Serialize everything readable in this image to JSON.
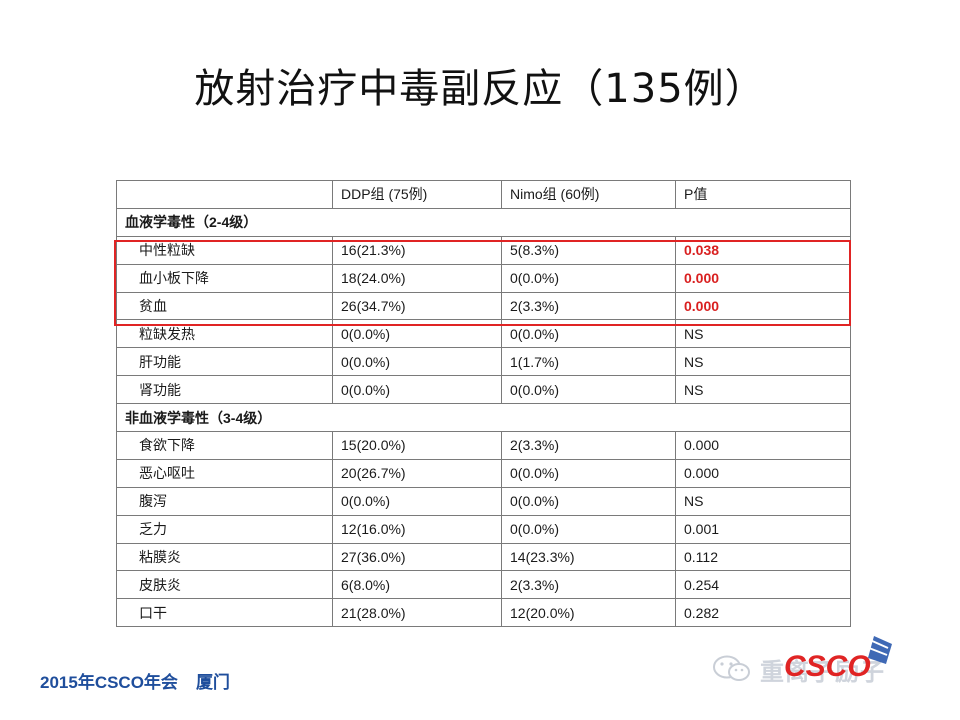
{
  "title": "放射治疗中毒副反应（135例）",
  "table": {
    "header": [
      "",
      "DDP组 (75例)",
      "Nimo组 (60例)",
      "P值"
    ],
    "sections": [
      {
        "label": "血液学毒性（2-4级）",
        "rows": [
          {
            "name": "中性粒缺",
            "ddp": "16(21.3%)",
            "nimo": "5(8.3%)",
            "p": "0.038",
            "highlight": true
          },
          {
            "name": "血小板下降",
            "ddp": "18(24.0%)",
            "nimo": "0(0.0%)",
            "p": "0.000",
            "highlight": true
          },
          {
            "name": "贫血",
            "ddp": "26(34.7%)",
            "nimo": "2(3.3%)",
            "p": "0.000",
            "highlight": true
          },
          {
            "name": "粒缺发热",
            "ddp": "0(0.0%)",
            "nimo": "0(0.0%)",
            "p": "NS",
            "highlight": false
          },
          {
            "name": "肝功能",
            "ddp": "0(0.0%)",
            "nimo": "1(1.7%)",
            "p": "NS",
            "highlight": false
          },
          {
            "name": "肾功能",
            "ddp": "0(0.0%)",
            "nimo": "0(0.0%)",
            "p": "NS",
            "highlight": false
          }
        ]
      },
      {
        "label": "非血液学毒性（3-4级）",
        "rows": [
          {
            "name": "食欲下降",
            "ddp": "15(20.0%)",
            "nimo": "2(3.3%)",
            "p": "0.000",
            "highlight": false
          },
          {
            "name": "恶心呕吐",
            "ddp": "20(26.7%)",
            "nimo": "0(0.0%)",
            "p": "0.000",
            "highlight": false
          },
          {
            "name": "腹泻",
            "ddp": "0(0.0%)",
            "nimo": "0(0.0%)",
            "p": "NS",
            "highlight": false
          },
          {
            "name": "乏力",
            "ddp": "12(16.0%)",
            "nimo": "0(0.0%)",
            "p": "0.001",
            "highlight": false
          },
          {
            "name": "粘膜炎",
            "ddp": "27(36.0%)",
            "nimo": "14(23.3%)",
            "p": "0.112",
            "highlight": false
          },
          {
            "name": "皮肤炎",
            "ddp": "6(8.0%)",
            "nimo": "2(3.3%)",
            "p": "0.254",
            "highlight": false
          },
          {
            "name": "口干",
            "ddp": "21(28.0%)",
            "nimo": "12(20.0%)",
            "p": "0.282",
            "highlight": false
          }
        ]
      }
    ]
  },
  "footer": {
    "event": "2015年CSCO年会",
    "city": "厦门"
  },
  "watermark": {
    "text": "重离子励子",
    "logo_text": "CSCO",
    "icon": "wechat-icon"
  },
  "colors": {
    "highlight": "#e02424",
    "footer": "#1f4e9c",
    "logo": "#1d4fa8",
    "logo_accent": "#e02424"
  }
}
